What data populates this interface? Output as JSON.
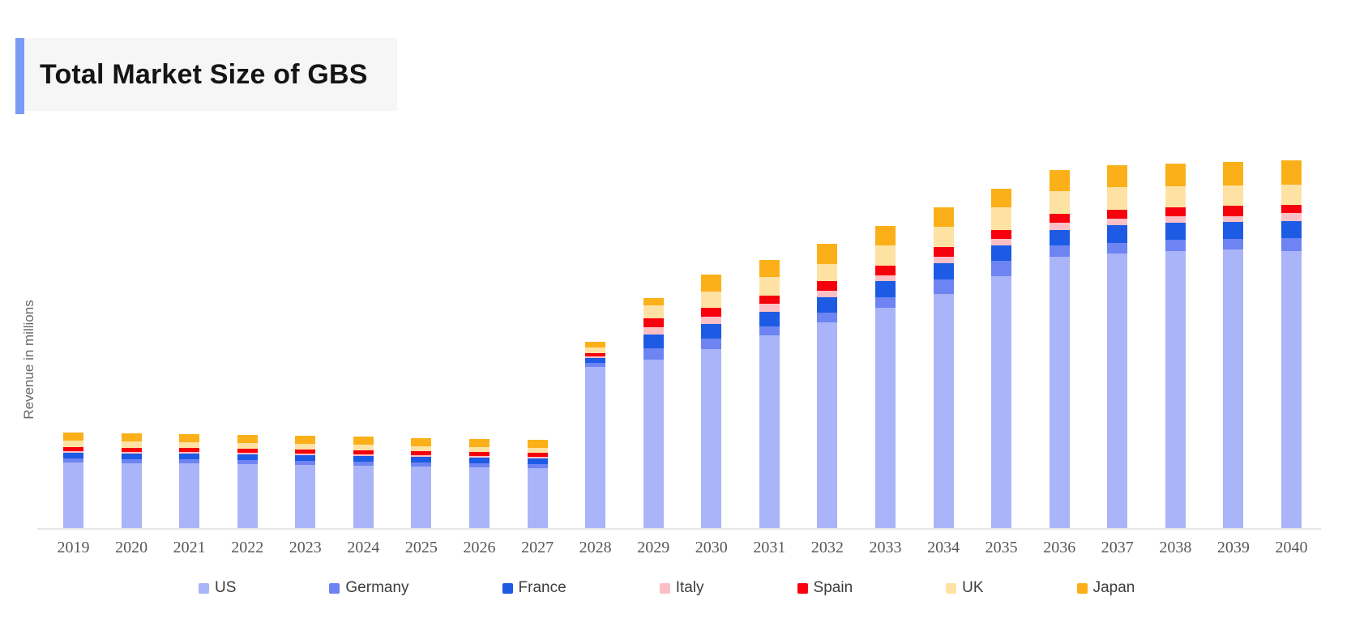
{
  "header": {
    "title": "Total Market Size of GBS"
  },
  "colors": {
    "accent_bar": "#7b9cf6",
    "header_panel_bg": "#f6f6f7",
    "title_text": "#151515",
    "axis_line": "#e6e6e8",
    "year_label_text": "#595959",
    "legend_text": "#3d3d3d",
    "ylabel_text": "#6a6a6a",
    "page_background": "#ffffff"
  },
  "y_axis": {
    "label": "Revenue in millions",
    "ticks_visible": false
  },
  "legend": {
    "position": "bottom",
    "items": [
      {
        "label": "US",
        "color": "#aab4f8"
      },
      {
        "label": "Germany",
        "color": "#6d84f2"
      },
      {
        "label": "France",
        "color": "#1d5be5"
      },
      {
        "label": "Italy",
        "color": "#fbc0c6"
      },
      {
        "label": "Spain",
        "color": "#f7000d"
      },
      {
        "label": "UK",
        "color": "#fde2a4"
      },
      {
        "label": "Japan",
        "color": "#fbb019"
      }
    ]
  },
  "chart_data": {
    "type": "bar",
    "stacked": true,
    "title": "Total Market Size of GBS",
    "xlabel": "",
    "ylabel": "Revenue in millions",
    "categories": [
      "2019",
      "2020",
      "2021",
      "2022",
      "2023",
      "2024",
      "2025",
      "2026",
      "2027",
      "2028",
      "2029",
      "2030",
      "2031",
      "2032",
      "2033",
      "2034",
      "2035",
      "2036",
      "2037",
      "2038",
      "2039",
      "2040"
    ],
    "series": [
      {
        "name": "US",
        "color": "#aab4f8",
        "values": [
          82,
          81,
          81,
          80,
          79,
          78,
          77,
          76,
          75,
          200,
          209,
          222,
          239,
          255,
          273,
          290,
          312,
          336,
          340,
          343,
          345,
          343
        ]
      },
      {
        "name": "Germany",
        "color": "#6d84f2",
        "values": [
          5,
          5,
          5,
          5,
          5,
          5,
          5,
          5,
          5,
          5,
          14,
          13,
          11,
          12,
          13,
          18,
          19,
          14,
          13,
          14,
          13,
          16
        ]
      },
      {
        "name": "France",
        "color": "#1d5be5",
        "values": [
          7,
          7,
          7,
          7,
          7,
          7,
          7,
          7,
          7,
          6,
          17,
          18,
          18,
          19,
          20,
          20,
          19,
          19,
          22,
          21,
          21,
          21
        ]
      },
      {
        "name": "Italy",
        "color": "#fbc0c6",
        "values": [
          2,
          2,
          2,
          2,
          2,
          2,
          2,
          2,
          2,
          2,
          9,
          9,
          10,
          8,
          7,
          8,
          8,
          9,
          8,
          8,
          7,
          10
        ]
      },
      {
        "name": "Spain",
        "color": "#f7000d",
        "values": [
          5,
          5,
          5,
          5,
          5,
          5,
          5,
          5,
          5,
          4,
          11,
          11,
          10,
          12,
          12,
          12,
          11,
          11,
          11,
          11,
          13,
          10
        ]
      },
      {
        "name": "UK",
        "color": "#fde2a4",
        "values": [
          8,
          8,
          7,
          7,
          7,
          7,
          6,
          6,
          6,
          7,
          16,
          20,
          23,
          21,
          25,
          25,
          28,
          28,
          28,
          26,
          25,
          25
        ]
      },
      {
        "name": "Japan",
        "color": "#fbb019",
        "values": [
          10,
          10,
          10,
          10,
          10,
          10,
          10,
          10,
          10,
          7,
          9,
          21,
          21,
          25,
          24,
          24,
          23,
          26,
          27,
          28,
          29,
          30
        ]
      }
    ],
    "stack_order_bottom_to_top": [
      "US",
      "Germany",
      "France",
      "Italy",
      "Spain",
      "UK",
      "Japan"
    ],
    "value_units": "arbitrary units (y axis unlabeled); 1 unit = 1 px on screen",
    "ylim": [
      0,
      475
    ],
    "grid": false,
    "y_tick_labels": "none shown",
    "legend_position": "bottom"
  }
}
